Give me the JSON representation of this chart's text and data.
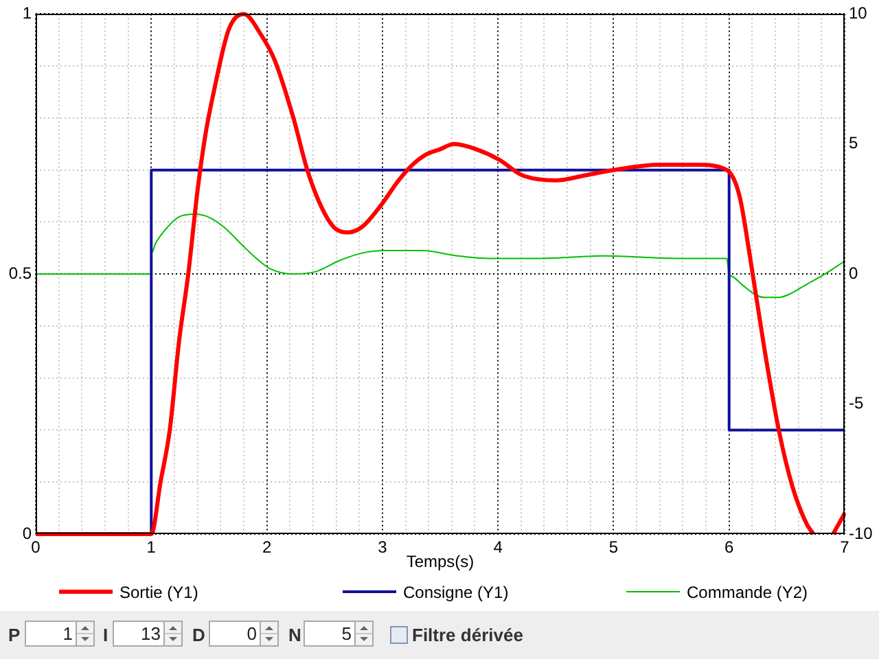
{
  "chart_data": {
    "type": "line",
    "xlabel": "Temps(s)",
    "xlim": [
      0,
      7
    ],
    "xticks": [
      0,
      {
        "value": 0.2,
        "label": null
      },
      {
        "value": 0.4,
        "label": null
      },
      {
        "value": 0.6,
        "label": null
      },
      {
        "value": 0.8,
        "label": null
      },
      1,
      {
        "value": 1.2,
        "label": null
      },
      {
        "value": 1.4,
        "label": null
      },
      {
        "value": 1.6,
        "label": null
      },
      {
        "value": 1.8,
        "label": null
      },
      2,
      {
        "value": 2.2,
        "label": null
      },
      {
        "value": 2.4,
        "label": null
      },
      {
        "value": 2.6,
        "label": null
      },
      {
        "value": 2.8,
        "label": null
      },
      3,
      {
        "value": 3.2,
        "label": null
      },
      {
        "value": 3.4,
        "label": null
      },
      {
        "value": 3.6,
        "label": null
      },
      {
        "value": 3.8,
        "label": null
      },
      4,
      {
        "value": 4.2,
        "label": null
      },
      {
        "value": 4.4,
        "label": null
      },
      {
        "value": 4.6,
        "label": null
      },
      {
        "value": 4.8,
        "label": null
      },
      5,
      {
        "value": 5.2,
        "label": null
      },
      {
        "value": 5.4,
        "label": null
      },
      {
        "value": 5.6,
        "label": null
      },
      {
        "value": 5.8,
        "label": null
      },
      6,
      {
        "value": 6.2,
        "label": null
      },
      {
        "value": 6.4,
        "label": null
      },
      {
        "value": 6.6,
        "label": null
      },
      {
        "value": 6.8,
        "label": null
      },
      7
    ],
    "ylim": [
      0,
      1
    ],
    "yticks": [
      0,
      {
        "value": 0.1,
        "label": null
      },
      {
        "value": 0.2,
        "label": null
      },
      {
        "value": 0.3,
        "label": null
      },
      {
        "value": 0.4,
        "label": null
      },
      0.5,
      {
        "value": 0.6,
        "label": null
      },
      {
        "value": 0.7,
        "label": null
      },
      {
        "value": 0.8,
        "label": null
      },
      {
        "value": 0.9,
        "label": null
      },
      1
    ],
    "y2lim": [
      -10,
      10
    ],
    "y2ticks": [
      -10,
      -5,
      0,
      5,
      10
    ],
    "grid": true,
    "legend": "bottom",
    "series": [
      {
        "name": "Sortie (Y1)",
        "color": "#ff0000",
        "x": [
          0,
          1,
          1.08,
          1.16,
          1.24,
          1.32,
          1.4,
          1.47,
          1.55,
          1.67,
          1.8,
          1.95,
          2.07,
          2.23,
          2.35,
          2.47,
          2.58,
          2.7,
          2.82,
          2.98,
          3.14,
          3.26,
          3.38,
          3.5,
          3.62,
          3.81,
          4.01,
          4.21,
          4.5,
          4.76,
          5.0,
          5.4,
          5.72,
          5.98,
          6.09,
          6.19,
          6.31,
          6.43,
          6.55,
          6.67,
          6.73,
          6.8,
          6.9,
          7
        ],
        "values": [
          0,
          0,
          0.1,
          0.2,
          0.37,
          0.5,
          0.66,
          0.77,
          0.86,
          0.97,
          1.0,
          0.96,
          0.91,
          0.8,
          0.7,
          0.63,
          0.59,
          0.58,
          0.59,
          0.63,
          0.68,
          0.71,
          0.73,
          0.74,
          0.75,
          0.74,
          0.72,
          0.69,
          0.68,
          0.69,
          0.7,
          0.71,
          0.71,
          0.7,
          0.65,
          0.52,
          0.35,
          0.2,
          0.09,
          0.02,
          0,
          null,
          0,
          0.04
        ]
      },
      {
        "name": "Consigne (Y1)",
        "color": "#10109c",
        "type": "step",
        "x": [
          0,
          1,
          6,
          7
        ],
        "values": [
          0,
          0.7,
          0.2,
          0.2
        ]
      },
      {
        "name": "Commande (Y2)",
        "color": "#00c000",
        "axis": "y2",
        "x": [
          0,
          1,
          1,
          1.04,
          1.12,
          1.24,
          1.38,
          1.49,
          1.63,
          1.79,
          1.91,
          2.03,
          2.23,
          2.43,
          2.62,
          2.82,
          3.02,
          3.34,
          3.65,
          3.93,
          4.37,
          4.92,
          5.55,
          5.98,
          6,
          6.03,
          6.11,
          6.23,
          6.31,
          6.43,
          6.51,
          6.67,
          6.83,
          7
        ],
        "values": [
          0,
          0,
          0.8,
          1.2,
          1.7,
          2.2,
          2.3,
          2.2,
          1.8,
          1.1,
          0.6,
          0.2,
          0.0,
          0.1,
          0.5,
          0.8,
          0.9,
          0.9,
          0.7,
          0.6,
          0.6,
          0.7,
          0.6,
          0.6,
          0.0,
          -0.1,
          -0.4,
          -0.8,
          -0.9,
          -0.9,
          -0.8,
          -0.4,
          0.0,
          0.5
        ]
      }
    ],
    "annotations": [
      "P",
      "1",
      "I",
      "13",
      "D",
      "0",
      "N",
      "5",
      "Filtre dérivée"
    ]
  }
}
